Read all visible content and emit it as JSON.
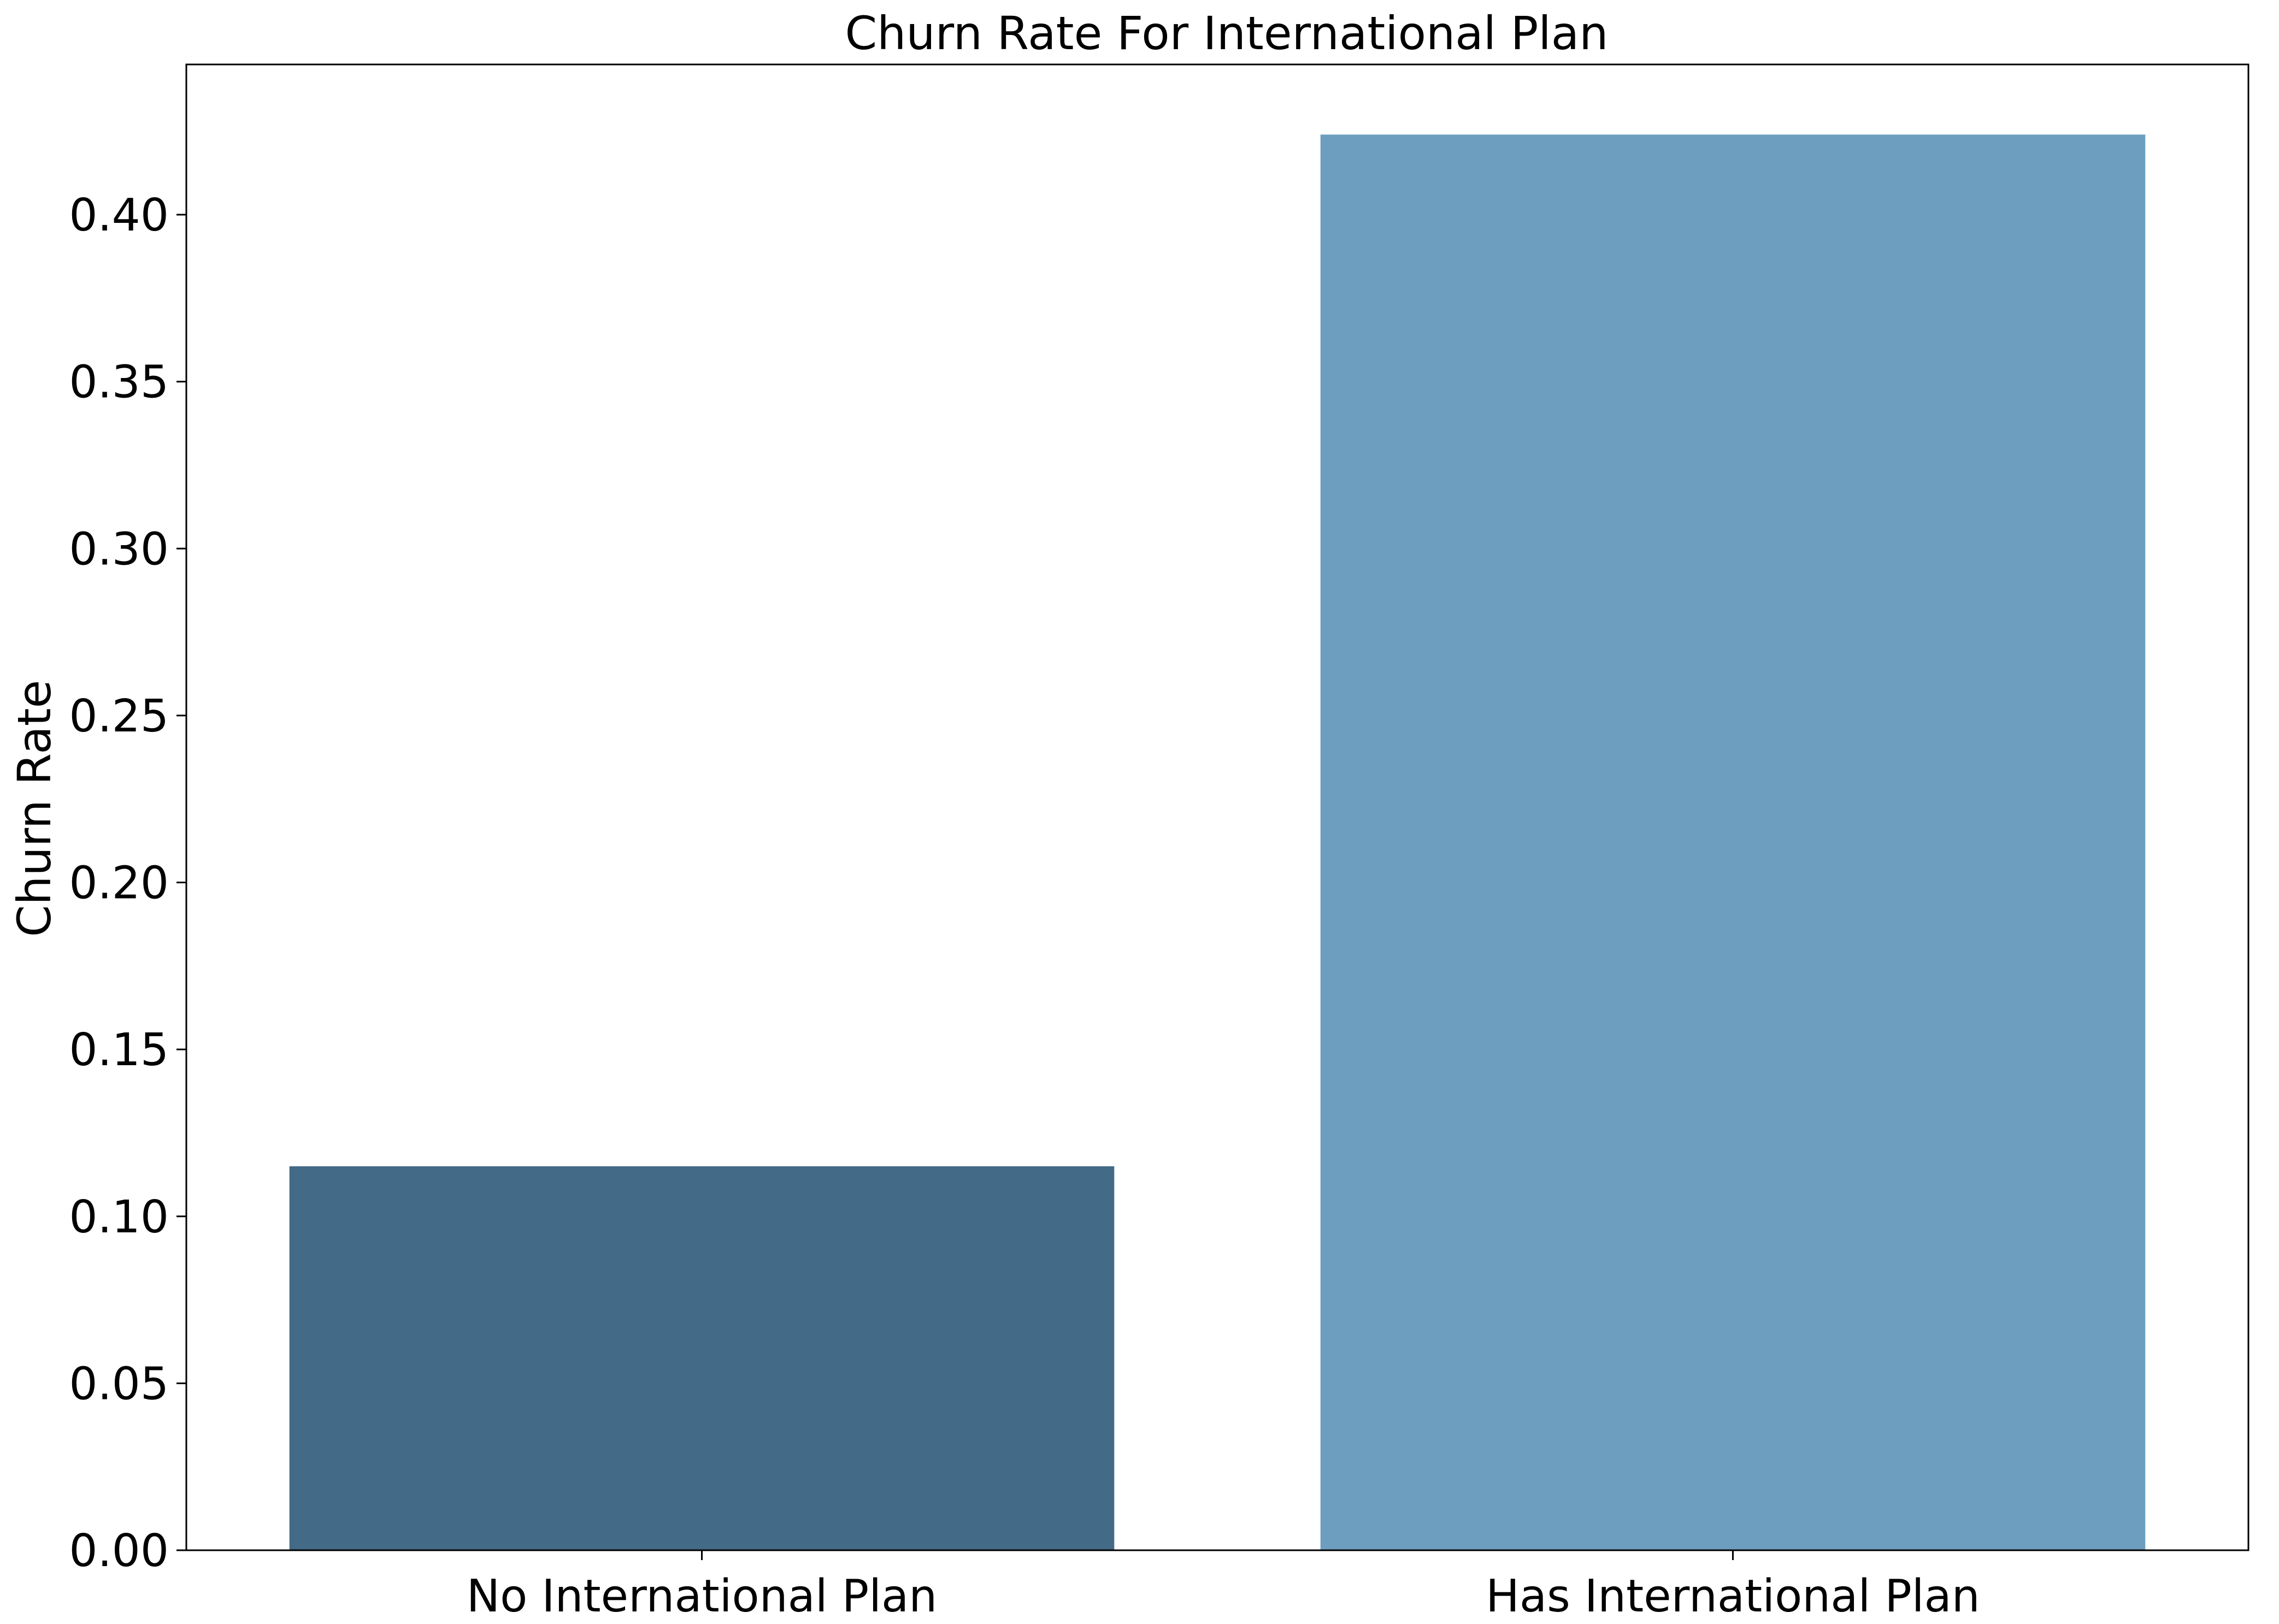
{
  "chart_data": {
    "type": "bar",
    "title": "Churn Rate For International Plan",
    "xlabel": "",
    "ylabel": "Churn Rate",
    "categories": [
      "No International Plan",
      "Has International Plan"
    ],
    "values": [
      0.115,
      0.424
    ],
    "ylim": [
      0,
      0.445
    ],
    "yticks": [
      0.0,
      0.05,
      0.1,
      0.15,
      0.2,
      0.25,
      0.3,
      0.35,
      0.4
    ],
    "ytick_labels": [
      "0.00",
      "0.05",
      "0.10",
      "0.15",
      "0.20",
      "0.25",
      "0.30",
      "0.35",
      "0.40"
    ],
    "bar_colors": [
      "#436a87",
      "#6d9ec0"
    ],
    "grid": false,
    "legend": "none"
  }
}
